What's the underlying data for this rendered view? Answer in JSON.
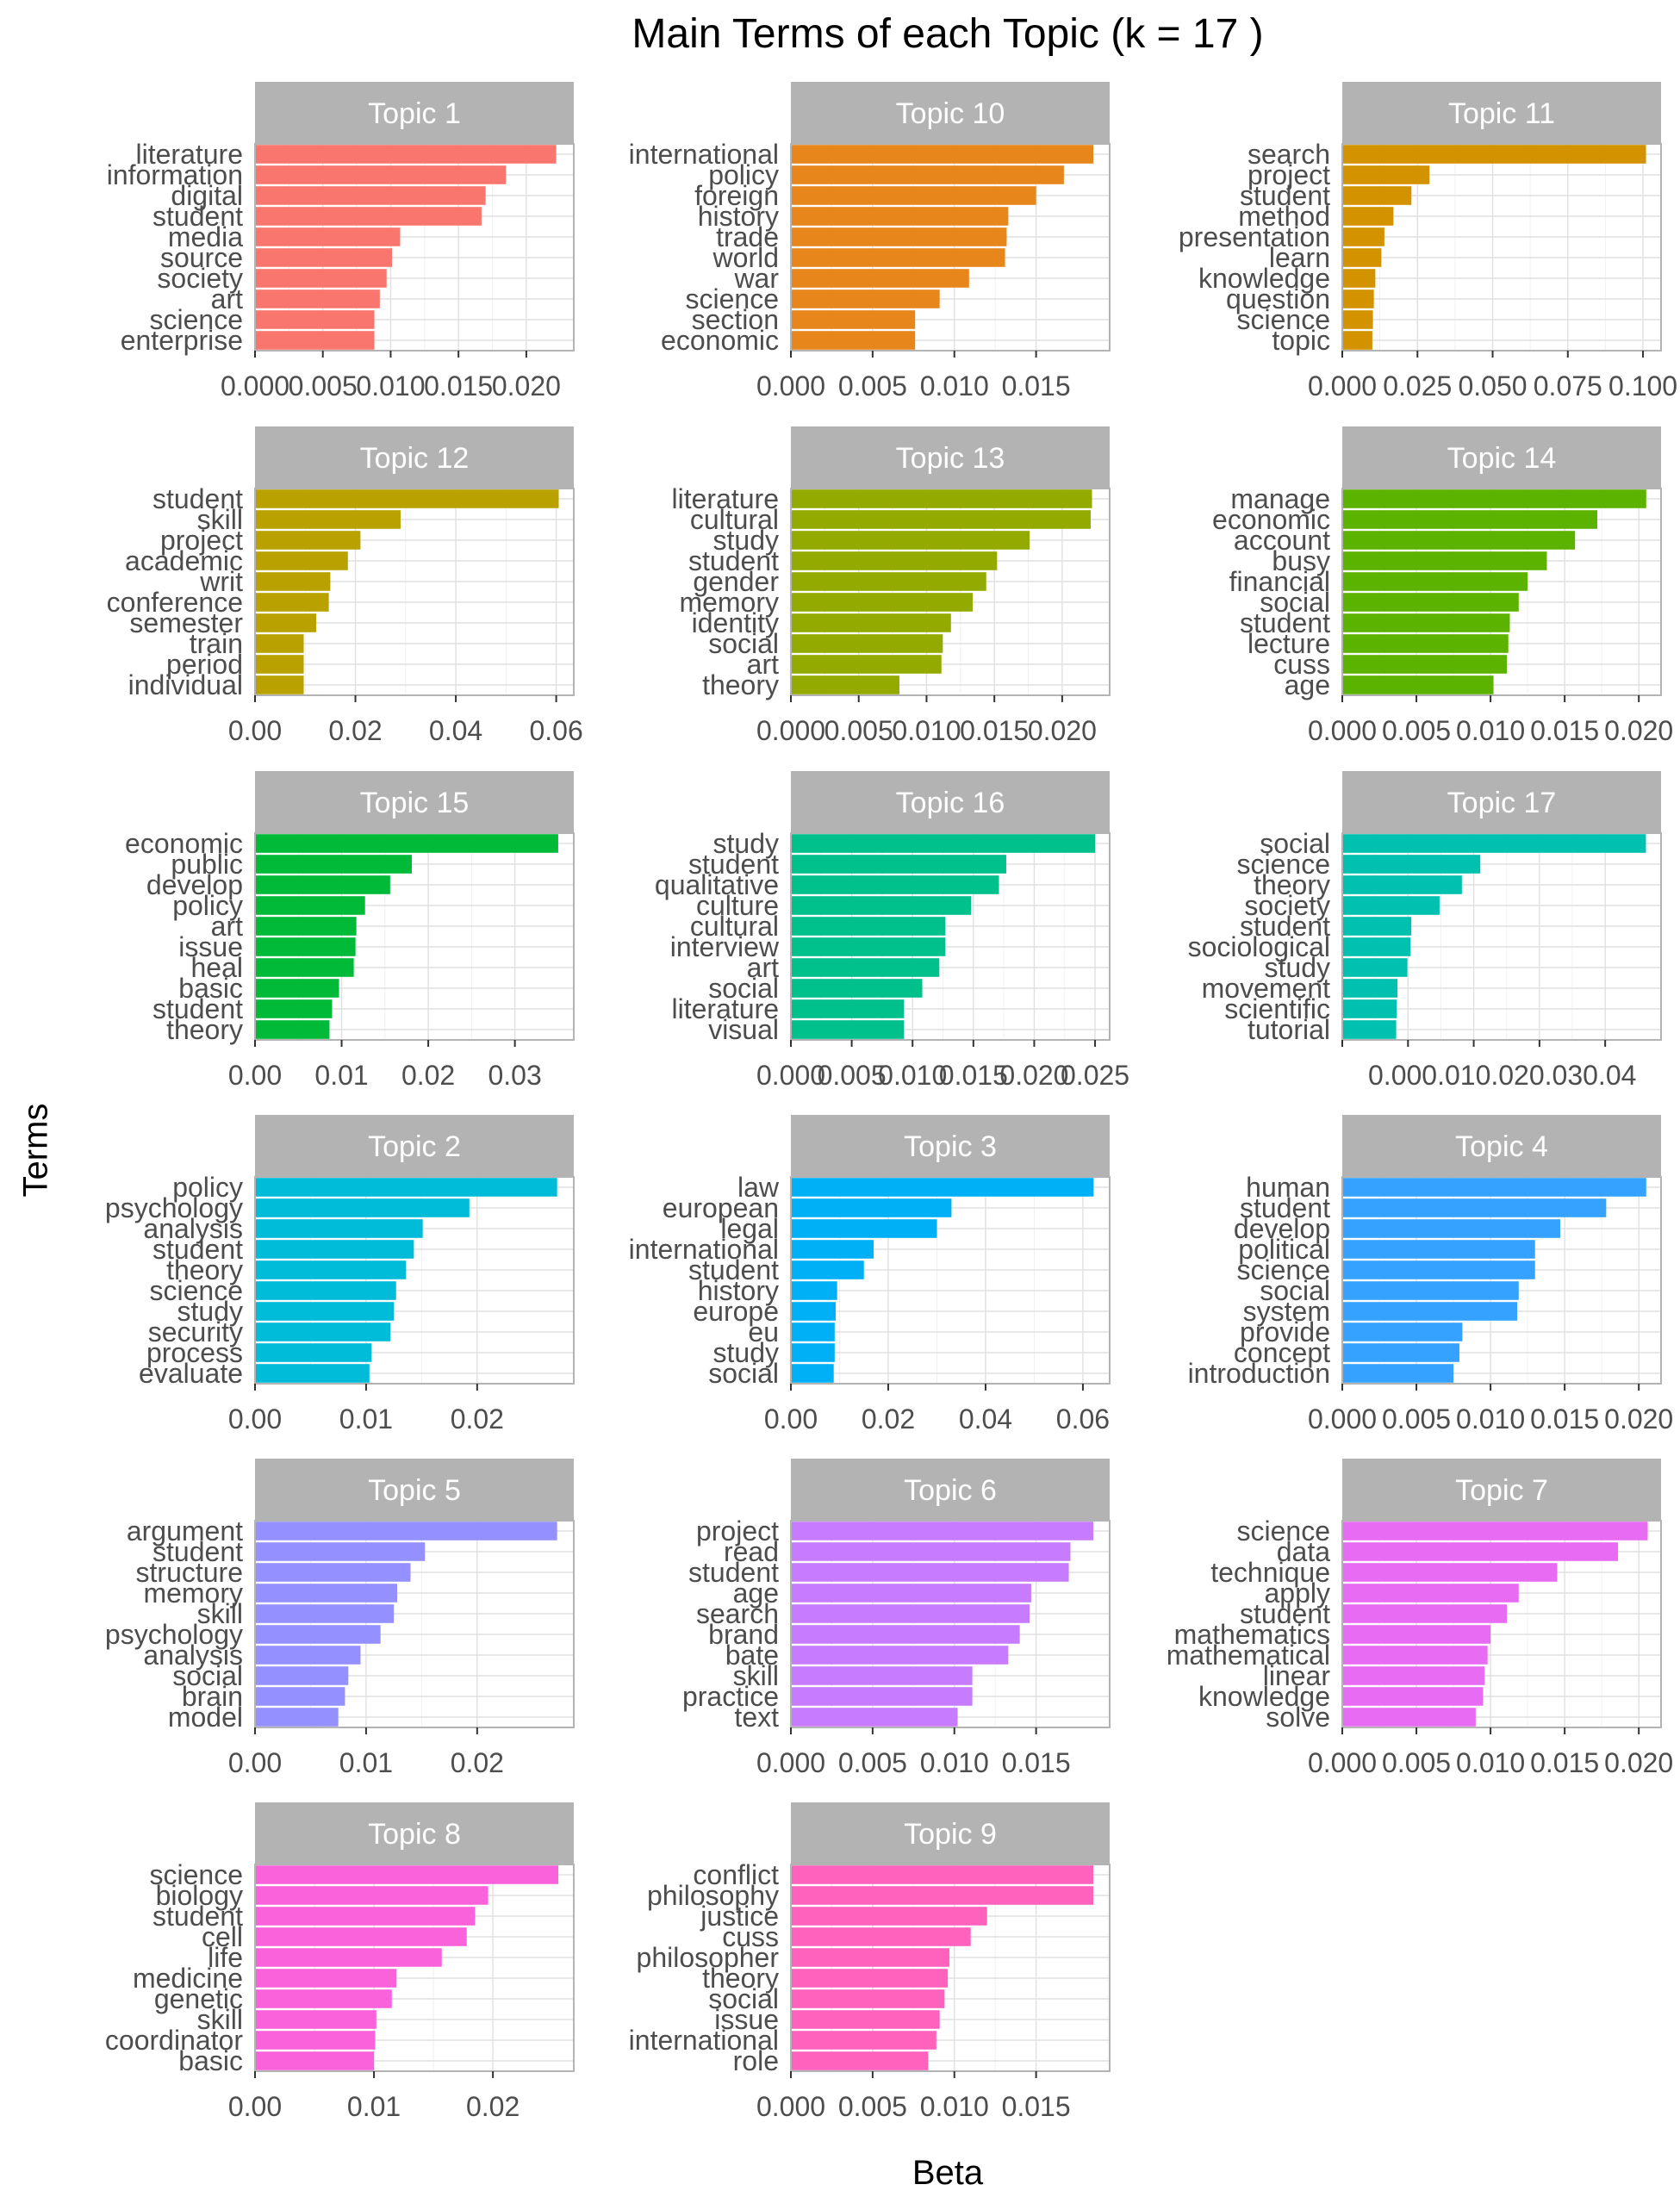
{
  "title": "Main Terms of each Topic (k = 17 )",
  "xlabel": "Beta",
  "ylabel": "Terms",
  "chart_data": {
    "type": "bar",
    "orientation": "horizontal",
    "facet_layout": "6 rows x 3 columns",
    "strip_color": "#b3b3b3",
    "grid": true,
    "panels": [
      {
        "title": "Topic 1",
        "color": "#F8766D",
        "xlim": [
          0,
          0.0235
        ],
        "ticks": [
          0.0,
          0.005,
          0.01,
          0.015,
          0.02
        ],
        "tick_labels": [
          "0.000",
          "0.005",
          "0.010",
          "0.015",
          "0.020"
        ],
        "terms": [
          "literature",
          "information",
          "digital",
          "student",
          "media",
          "source",
          "society",
          "art",
          "science",
          "enterprise"
        ],
        "values": [
          0.0222,
          0.0185,
          0.017,
          0.0167,
          0.0107,
          0.0101,
          0.0097,
          0.0092,
          0.0088,
          0.0088
        ]
      },
      {
        "title": "Topic 10",
        "color": "#E7861B",
        "xlim": [
          0,
          0.0195
        ],
        "ticks": [
          0.0,
          0.005,
          0.01,
          0.015
        ],
        "tick_labels": [
          "0.000",
          "0.005",
          "0.010",
          "0.015"
        ],
        "terms": [
          "international",
          "policy",
          "foreign",
          "history",
          "trade",
          "world",
          "war",
          "science",
          "section",
          "economic"
        ],
        "values": [
          0.0185,
          0.0167,
          0.015,
          0.0133,
          0.0132,
          0.0131,
          0.0109,
          0.0091,
          0.0076,
          0.0076
        ]
      },
      {
        "title": "Topic 11",
        "color": "#D39200",
        "xlim": [
          0,
          0.106
        ],
        "ticks": [
          0.0,
          0.025,
          0.05,
          0.075,
          0.1
        ],
        "tick_labels": [
          "0.000",
          "0.025",
          "0.050",
          "0.075",
          "0.100"
        ],
        "terms": [
          "search",
          "project",
          "student",
          "method",
          "presentation",
          "learn",
          "knowledge",
          "question",
          "science",
          "topic"
        ],
        "values": [
          0.101,
          0.029,
          0.023,
          0.017,
          0.014,
          0.013,
          0.011,
          0.0105,
          0.0102,
          0.01
        ]
      },
      {
        "title": "Topic 12",
        "color": "#B9A100",
        "xlim": [
          0,
          0.0635
        ],
        "ticks": [
          0.0,
          0.02,
          0.04,
          0.06
        ],
        "tick_labels": [
          "0.00",
          "0.02",
          "0.04",
          "0.06"
        ],
        "terms": [
          "student",
          "skill",
          "project",
          "academic",
          "writ",
          "conference",
          "semester",
          "train",
          "period",
          "individual"
        ],
        "values": [
          0.0605,
          0.029,
          0.021,
          0.0185,
          0.015,
          0.0147,
          0.0122,
          0.0097,
          0.0097,
          0.0097
        ]
      },
      {
        "title": "Topic 13",
        "color": "#93AA00",
        "xlim": [
          0,
          0.0235
        ],
        "ticks": [
          0.0,
          0.005,
          0.01,
          0.015,
          0.02
        ],
        "tick_labels": [
          "0.000",
          "0.005",
          "0.010",
          "0.015",
          "0.020"
        ],
        "terms": [
          "literature",
          "cultural",
          "study",
          "student",
          "gender",
          "memory",
          "identity",
          "social",
          "art",
          "theory"
        ],
        "values": [
          0.0222,
          0.0221,
          0.0176,
          0.0152,
          0.0144,
          0.0134,
          0.0118,
          0.0112,
          0.0111,
          0.008
        ]
      },
      {
        "title": "Topic 14",
        "color": "#5BB300",
        "xlim": [
          0,
          0.0215
        ],
        "ticks": [
          0.0,
          0.005,
          0.01,
          0.015,
          0.02
        ],
        "tick_labels": [
          "0.000",
          "0.005",
          "0.010",
          "0.015",
          "0.020"
        ],
        "terms": [
          "manage",
          "economic",
          "account",
          "busy",
          "financial",
          "social",
          "student",
          "lecture",
          "cuss",
          "age"
        ],
        "values": [
          0.0205,
          0.0172,
          0.0157,
          0.0138,
          0.0125,
          0.0119,
          0.0113,
          0.0112,
          0.0111,
          0.0102
        ]
      },
      {
        "title": "Topic 15",
        "color": "#00BA38",
        "xlim": [
          0,
          0.0368
        ],
        "ticks": [
          0.0,
          0.01,
          0.02,
          0.03
        ],
        "tick_labels": [
          "0.00",
          "0.01",
          "0.02",
          "0.03"
        ],
        "terms": [
          "economic",
          "public",
          "develop",
          "policy",
          "art",
          "issue",
          "heal",
          "basic",
          "student",
          "theory"
        ],
        "values": [
          0.035,
          0.0181,
          0.0156,
          0.0127,
          0.0117,
          0.0116,
          0.0114,
          0.0097,
          0.0089,
          0.0086
        ]
      },
      {
        "title": "Topic 16",
        "color": "#00C08B",
        "xlim": [
          0,
          0.0262
        ],
        "ticks": [
          0.0,
          0.005,
          0.01,
          0.015,
          0.02,
          0.025
        ],
        "tick_labels": [
          "0.000",
          "0.005",
          "0.010",
          "0.015",
          "0.020",
          "0.025"
        ],
        "terms": [
          "study",
          "student",
          "qualitative",
          "culture",
          "cultural",
          "interview",
          "art",
          "social",
          "literature",
          "visual"
        ],
        "values": [
          0.025,
          0.0177,
          0.0171,
          0.0148,
          0.0127,
          0.0127,
          0.0122,
          0.0108,
          0.0093,
          0.0093
        ]
      },
      {
        "title": "Topic 17",
        "color": "#00C0AF",
        "xlim": [
          0,
          0.0485
        ],
        "ticks": [
          0.0,
          0.01,
          0.02,
          0.03,
          0.04
        ],
        "tick_labels": [
          "0.00",
          "0.01",
          "0.02",
          "0.03",
          "0.04"
        ],
        "tick_label_text": "0.000.010.020.030.04",
        "terms": [
          "social",
          "science",
          "theory",
          "society",
          "student",
          "sociological",
          "study",
          "movement",
          "scientific",
          "tutorial"
        ],
        "values": [
          0.0462,
          0.021,
          0.0182,
          0.0148,
          0.0105,
          0.0104,
          0.0099,
          0.0084,
          0.0083,
          0.0082
        ]
      },
      {
        "title": "Topic 2",
        "color": "#00BCD8",
        "xlim": [
          0,
          0.0287
        ],
        "ticks": [
          0.0,
          0.01,
          0.02
        ],
        "tick_labels": [
          "0.00",
          "0.01",
          "0.02"
        ],
        "terms": [
          "policy",
          "psychology",
          "analysis",
          "student",
          "theory",
          "science",
          "study",
          "security",
          "process",
          "evaluate"
        ],
        "values": [
          0.0272,
          0.0193,
          0.0151,
          0.0143,
          0.0136,
          0.0127,
          0.0125,
          0.0122,
          0.0105,
          0.0103
        ]
      },
      {
        "title": "Topic 3",
        "color": "#00B0F6",
        "xlim": [
          0,
          0.0655
        ],
        "ticks": [
          0.0,
          0.02,
          0.04,
          0.06
        ],
        "tick_labels": [
          "0.00",
          "0.02",
          "0.04",
          "0.06"
        ],
        "terms": [
          "law",
          "european",
          "legal",
          "international",
          "student",
          "history",
          "europe",
          "eu",
          "study",
          "social"
        ],
        "values": [
          0.0622,
          0.033,
          0.03,
          0.017,
          0.015,
          0.0095,
          0.0092,
          0.009,
          0.009,
          0.0088
        ]
      },
      {
        "title": "Topic 4",
        "color": "#35A2FF",
        "xlim": [
          0,
          0.0215
        ],
        "ticks": [
          0.0,
          0.005,
          0.01,
          0.015,
          0.02
        ],
        "tick_labels": [
          "0.000",
          "0.005",
          "0.010",
          "0.015",
          "0.020"
        ],
        "terms": [
          "human",
          "student",
          "develop",
          "political",
          "science",
          "social",
          "system",
          "provide",
          "concept",
          "introduction"
        ],
        "values": [
          0.0205,
          0.0178,
          0.0147,
          0.013,
          0.013,
          0.0119,
          0.0118,
          0.0081,
          0.0079,
          0.0075
        ]
      },
      {
        "title": "Topic 5",
        "color": "#9590FF",
        "xlim": [
          0,
          0.0287
        ],
        "ticks": [
          0.0,
          0.01,
          0.02
        ],
        "tick_labels": [
          "0.00",
          "0.01",
          "0.02"
        ],
        "terms": [
          "argument",
          "student",
          "structure",
          "memory",
          "skill",
          "psychology",
          "analysis",
          "social",
          "brain",
          "model"
        ],
        "values": [
          0.0272,
          0.0153,
          0.014,
          0.0128,
          0.0125,
          0.0113,
          0.0095,
          0.0084,
          0.0081,
          0.0075
        ]
      },
      {
        "title": "Topic 6",
        "color": "#C77CFF",
        "xlim": [
          0,
          0.0195
        ],
        "ticks": [
          0.0,
          0.005,
          0.01,
          0.015
        ],
        "tick_labels": [
          "0.000",
          "0.005",
          "0.010",
          "0.015"
        ],
        "terms": [
          "project",
          "read",
          "student",
          "age",
          "search",
          "brand",
          "bate",
          "skill",
          "practice",
          "text"
        ],
        "values": [
          0.0185,
          0.0171,
          0.017,
          0.0147,
          0.0146,
          0.014,
          0.0133,
          0.0111,
          0.0111,
          0.0102
        ]
      },
      {
        "title": "Topic 7",
        "color": "#E76BF3",
        "xlim": [
          0,
          0.0215
        ],
        "ticks": [
          0.0,
          0.005,
          0.01,
          0.015,
          0.02
        ],
        "tick_labels": [
          "0.000",
          "0.005",
          "0.010",
          "0.015",
          "0.020"
        ],
        "terms": [
          "science",
          "data",
          "technique",
          "apply",
          "student",
          "mathematics",
          "mathematical",
          "linear",
          "knowledge",
          "solve"
        ],
        "values": [
          0.0206,
          0.0186,
          0.0145,
          0.0119,
          0.0111,
          0.01,
          0.0098,
          0.0096,
          0.0095,
          0.009
        ]
      },
      {
        "title": "Topic 8",
        "color": "#FA62DB",
        "xlim": [
          0,
          0.0268
        ],
        "ticks": [
          0.0,
          0.01,
          0.02
        ],
        "tick_labels": [
          "0.00",
          "0.01",
          "0.02"
        ],
        "terms": [
          "science",
          "biology",
          "student",
          "cell",
          "life",
          "medicine",
          "genetic",
          "skill",
          "coordinator",
          "basic"
        ],
        "values": [
          0.0255,
          0.0196,
          0.0185,
          0.0178,
          0.0157,
          0.0119,
          0.0115,
          0.0102,
          0.0101,
          0.01
        ]
      },
      {
        "title": "Topic 9",
        "color": "#FF62BC",
        "xlim": [
          0,
          0.0195
        ],
        "ticks": [
          0.0,
          0.005,
          0.01,
          0.015
        ],
        "tick_labels": [
          "0.000",
          "0.005",
          "0.010",
          "0.015"
        ],
        "terms": [
          "conflict",
          "philosophy",
          "justice",
          "cuss",
          "philosopher",
          "theory",
          "social",
          "issue",
          "international",
          "role"
        ],
        "values": [
          0.0185,
          0.0185,
          0.012,
          0.011,
          0.0097,
          0.0096,
          0.0094,
          0.0091,
          0.0089,
          0.0084
        ]
      }
    ]
  }
}
